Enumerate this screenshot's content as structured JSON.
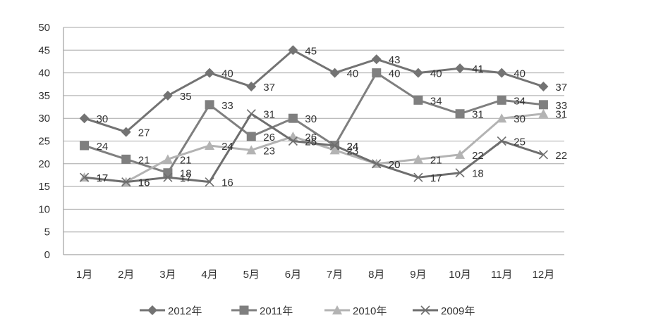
{
  "chart_data": {
    "type": "line",
    "categories": [
      "1月",
      "2月",
      "3月",
      "4月",
      "5月",
      "6月",
      "7月",
      "8月",
      "9月",
      "10月",
      "11月",
      "12月"
    ],
    "y_ticks": [
      "0",
      "5",
      "10",
      "15",
      "20",
      "25",
      "30",
      "35",
      "40",
      "45",
      "50"
    ],
    "ylim": [
      0,
      50
    ],
    "grid": true,
    "legend": "bottom",
    "series": [
      {
        "name": "2012年",
        "marker": "diamond",
        "color": "#737373",
        "values": [
          30,
          27,
          35,
          40,
          37,
          45,
          40,
          43,
          40,
          41,
          40,
          37
        ]
      },
      {
        "name": "2011年",
        "marker": "square",
        "color": "#7f7f7f",
        "values": [
          24,
          21,
          18,
          33,
          26,
          30,
          24,
          40,
          34,
          31,
          34,
          33
        ]
      },
      {
        "name": "2010年",
        "marker": "triangle",
        "color": "#b3b3b3",
        "values": [
          17,
          16,
          21,
          24,
          23,
          26,
          23,
          20,
          21,
          22,
          30,
          31
        ]
      },
      {
        "name": "2009年",
        "marker": "x",
        "color": "#6e6e6e",
        "values": [
          17,
          16,
          17,
          16,
          31,
          25,
          24,
          20,
          17,
          18,
          25,
          22
        ]
      }
    ]
  }
}
